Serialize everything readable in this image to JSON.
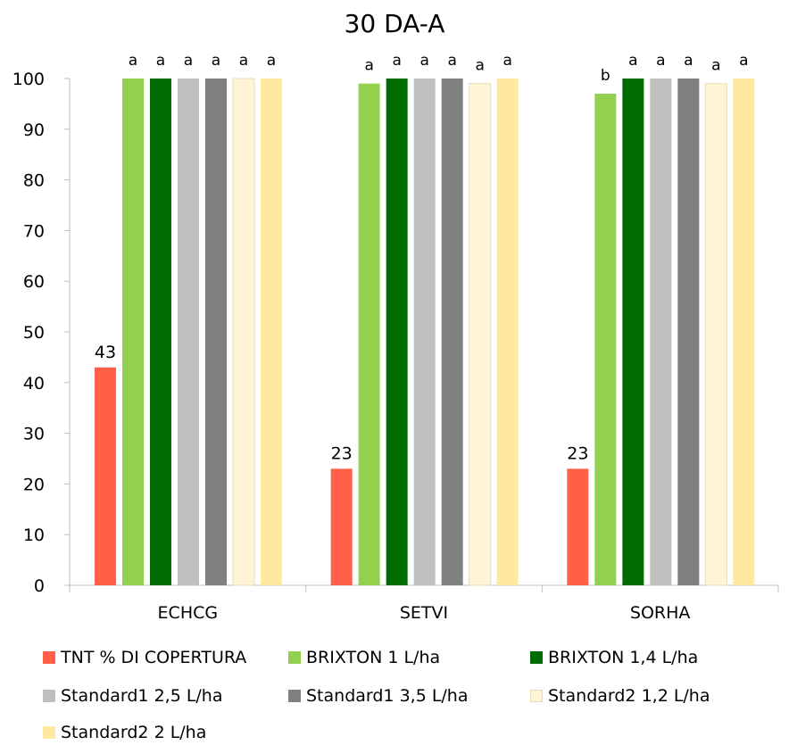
{
  "chart_data": {
    "type": "bar",
    "title": "30 DA-A",
    "xlabel": "",
    "ylabel": "",
    "ylim": [
      0,
      100
    ],
    "yticks": [
      "0",
      "10",
      "20",
      "30",
      "40",
      "50",
      "60",
      "70",
      "80",
      "90",
      "100"
    ],
    "grid": false,
    "legend_position": "bottom",
    "categories": [
      "ECHCG",
      "SETVI",
      "SORHA"
    ],
    "series": [
      {
        "name": "TNT % DI COPERTURA",
        "color": "#ff6047",
        "values": [
          43,
          23,
          23
        ],
        "labels": [
          "43",
          "23",
          "23"
        ]
      },
      {
        "name": "BRIXTON 1 L/ha",
        "color": "#92d050",
        "values": [
          100,
          99,
          97
        ],
        "labels": [
          "a",
          "a",
          "b"
        ]
      },
      {
        "name": "BRIXTON 1,4 L/ha",
        "color": "#006b00",
        "values": [
          100,
          100,
          100
        ],
        "labels": [
          "a",
          "a",
          "a"
        ]
      },
      {
        "name": "Standard1 2,5 L/ha",
        "color": "#bfbfbf",
        "values": [
          100,
          100,
          100
        ],
        "labels": [
          "a",
          "a",
          "a"
        ]
      },
      {
        "name": "Standard1 3,5 L/ha",
        "color": "#808080",
        "values": [
          100,
          100,
          100
        ],
        "labels": [
          "a",
          "a",
          "a"
        ]
      },
      {
        "name": "Standard2 1,2 L/ha",
        "color": "#fff5d6",
        "values": [
          100,
          99,
          99
        ],
        "labels": [
          "a",
          "a",
          "a"
        ]
      },
      {
        "name": "Standard2 2 L/ha",
        "color": "#ffe8a0",
        "values": [
          100,
          100,
          100
        ],
        "labels": [
          "a",
          "a",
          "a"
        ]
      }
    ]
  }
}
